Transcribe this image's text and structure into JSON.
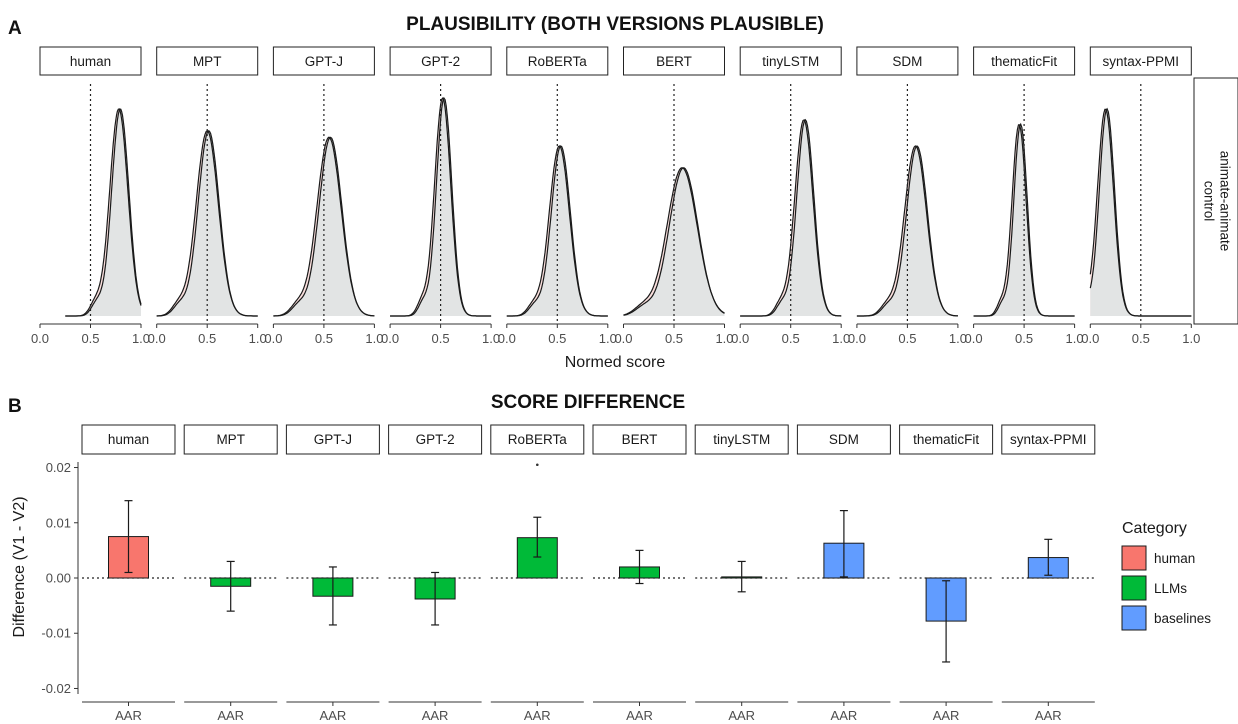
{
  "figure": {
    "panel_a_letter": "A",
    "panel_a_title": "PLAUSIBILITY (BOTH VERSIONS PLAUSIBLE)",
    "panel_b_letter": "B",
    "panel_b_title": "SCORE DIFFERENCE"
  },
  "chart_data": [
    {
      "type": "area",
      "title": "PLAUSIBILITY (BOTH VERSIONS PLAUSIBLE)",
      "xlabel": "Normed score",
      "row_strip": "animate-animate control",
      "xlim": [
        0,
        1
      ],
      "x_ticks": [
        "0.0",
        "0.5",
        "1.0"
      ],
      "reference_line_x": 0.5,
      "grid": false,
      "fill_color": "#dfe4e4",
      "version_colors": [
        "#f4a6a0",
        "#8fd3d0"
      ],
      "facets": [
        {
          "name": "human",
          "peak_x": 0.78,
          "spread": 0.09,
          "peak_height": 0.95,
          "min_x": 0.25,
          "max_x": 1.0
        },
        {
          "name": "MPT",
          "peak_x": 0.5,
          "spread": 0.11,
          "peak_height": 0.85,
          "min_x": 0.0,
          "max_x": 1.0
        },
        {
          "name": "GPT-J",
          "peak_x": 0.55,
          "spread": 0.12,
          "peak_height": 0.82,
          "min_x": 0.0,
          "max_x": 1.0
        },
        {
          "name": "GPT-2",
          "peak_x": 0.52,
          "spread": 0.08,
          "peak_height": 1.0,
          "min_x": 0.0,
          "max_x": 1.0
        },
        {
          "name": "RoBERTa",
          "peak_x": 0.52,
          "spread": 0.1,
          "peak_height": 0.78,
          "min_x": 0.0,
          "max_x": 1.0
        },
        {
          "name": "BERT",
          "peak_x": 0.58,
          "spread": 0.15,
          "peak_height": 0.68,
          "min_x": 0.0,
          "max_x": 1.0
        },
        {
          "name": "tinyLSTM",
          "peak_x": 0.63,
          "spread": 0.09,
          "peak_height": 0.9,
          "min_x": 0.0,
          "max_x": 1.0
        },
        {
          "name": "SDM",
          "peak_x": 0.58,
          "spread": 0.11,
          "peak_height": 0.78,
          "min_x": 0.0,
          "max_x": 1.0
        },
        {
          "name": "thematicFit",
          "peak_x": 0.45,
          "spread": 0.07,
          "peak_height": 0.88,
          "min_x": 0.0,
          "max_x": 1.0
        },
        {
          "name": "syntax-PPMI",
          "peak_x": 0.15,
          "spread": 0.08,
          "peak_height": 0.95,
          "min_x": 0.0,
          "max_x": 1.0
        }
      ]
    },
    {
      "type": "bar",
      "title": "SCORE DIFFERENCE",
      "ylabel": "Difference (V1 - V2)",
      "ylim": [
        -0.021,
        0.021
      ],
      "y_ticks": [
        "0.02",
        "0.01",
        "0.00",
        "-0.01",
        "-0.02"
      ],
      "y_tick_values": [
        0.02,
        0.01,
        0.0,
        -0.01,
        -0.02
      ],
      "x_tick_label": "AAR",
      "reference_line_y": 0,
      "grid": false,
      "legend_title": "Category",
      "legend_position": "right",
      "categories_legend": [
        {
          "name": "human",
          "color": "#f8766d"
        },
        {
          "name": "LLMs",
          "color": "#00ba38"
        },
        {
          "name": "baselines",
          "color": "#619cff"
        }
      ],
      "facets": [
        {
          "name": "human",
          "category": "human",
          "value": 0.0075,
          "err_low": 0.001,
          "err_high": 0.014
        },
        {
          "name": "MPT",
          "category": "LLMs",
          "value": -0.0015,
          "err_low": -0.006,
          "err_high": 0.003
        },
        {
          "name": "GPT-J",
          "category": "LLMs",
          "value": -0.0033,
          "err_low": -0.0085,
          "err_high": 0.002
        },
        {
          "name": "GPT-2",
          "category": "LLMs",
          "value": -0.0038,
          "err_low": -0.0085,
          "err_high": 0.001
        },
        {
          "name": "RoBERTa",
          "category": "LLMs",
          "value": 0.0073,
          "err_low": 0.0038,
          "err_high": 0.011,
          "outlier": 0.0205
        },
        {
          "name": "BERT",
          "category": "LLMs",
          "value": 0.002,
          "err_low": -0.001,
          "err_high": 0.005
        },
        {
          "name": "tinyLSTM",
          "category": "LLMs",
          "value": 0.0002,
          "err_low": -0.0025,
          "err_high": 0.003
        },
        {
          "name": "SDM",
          "category": "baselines",
          "value": 0.0063,
          "err_low": 0.0002,
          "err_high": 0.0122
        },
        {
          "name": "thematicFit",
          "category": "baselines",
          "value": -0.0078,
          "err_low": -0.0152,
          "err_high": -0.0005
        },
        {
          "name": "syntax-PPMI",
          "category": "baselines",
          "value": 0.0037,
          "err_low": 0.0005,
          "err_high": 0.007
        }
      ]
    }
  ]
}
